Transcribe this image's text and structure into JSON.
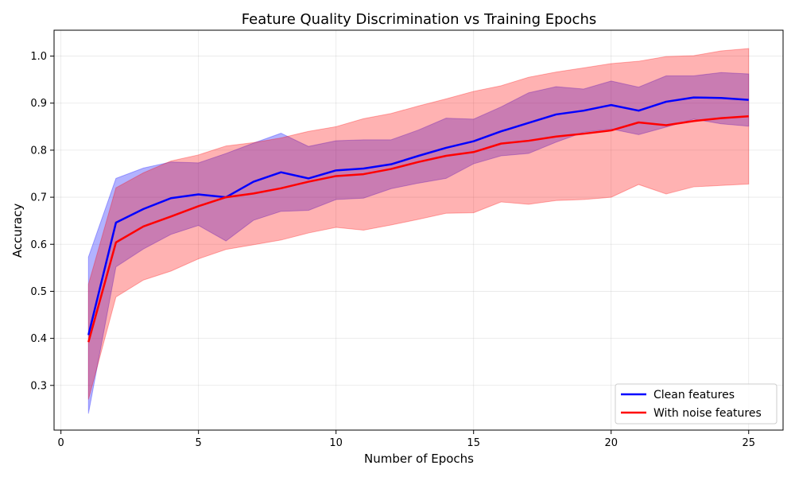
{
  "chart_data": {
    "type": "line",
    "title": "Feature Quality Discrimination vs Training Epochs",
    "xlabel": "Number of Epochs",
    "ylabel": "Accuracy",
    "xlim": [
      -0.25,
      26.25
    ],
    "ylim": [
      0.205,
      1.055
    ],
    "xticks": [
      0,
      5,
      10,
      15,
      20,
      25
    ],
    "yticks": [
      0.3,
      0.4,
      0.5,
      0.6,
      0.7,
      0.8,
      0.9,
      1.0
    ],
    "xtick_labels": [
      "0",
      "5",
      "10",
      "15",
      "20",
      "25"
    ],
    "ytick_labels": [
      "0.3",
      "0.4",
      "0.5",
      "0.6",
      "0.7",
      "0.8",
      "0.9",
      "1.0"
    ],
    "grid": true,
    "legend_position": "lower-right",
    "x": [
      1,
      2,
      3,
      4,
      5,
      6,
      7,
      8,
      9,
      10,
      11,
      12,
      13,
      14,
      15,
      16,
      17,
      18,
      19,
      20,
      21,
      22,
      23,
      24,
      25
    ],
    "series": [
      {
        "name": "Clean features",
        "color": "#0000ff",
        "band_color": "#0000ff",
        "values": [
          0.407,
          0.646,
          0.675,
          0.698,
          0.706,
          0.7,
          0.733,
          0.753,
          0.74,
          0.757,
          0.761,
          0.77,
          0.788,
          0.805,
          0.819,
          0.84,
          0.858,
          0.876,
          0.884,
          0.896,
          0.884,
          0.903,
          0.912,
          0.911,
          0.907
        ],
        "upper": [
          0.573,
          0.74,
          0.762,
          0.775,
          0.773,
          0.793,
          0.815,
          0.836,
          0.808,
          0.82,
          0.822,
          0.822,
          0.843,
          0.868,
          0.866,
          0.892,
          0.922,
          0.935,
          0.93,
          0.947,
          0.934,
          0.958,
          0.958,
          0.965,
          0.962
        ],
        "lower": [
          0.24,
          0.552,
          0.59,
          0.621,
          0.64,
          0.607,
          0.651,
          0.67,
          0.672,
          0.695,
          0.698,
          0.718,
          0.73,
          0.74,
          0.771,
          0.788,
          0.793,
          0.817,
          0.838,
          0.845,
          0.833,
          0.849,
          0.866,
          0.856,
          0.851
        ]
      },
      {
        "name": "With noise features",
        "color": "#ff0000",
        "band_color": "#ff0000",
        "values": [
          0.392,
          0.604,
          0.638,
          0.659,
          0.681,
          0.7,
          0.708,
          0.719,
          0.733,
          0.745,
          0.749,
          0.76,
          0.775,
          0.788,
          0.796,
          0.814,
          0.82,
          0.829,
          0.835,
          0.842,
          0.859,
          0.853,
          0.862,
          0.868,
          0.872
        ],
        "upper": [
          0.515,
          0.72,
          0.752,
          0.777,
          0.79,
          0.809,
          0.816,
          0.826,
          0.84,
          0.85,
          0.867,
          0.878,
          0.894,
          0.909,
          0.925,
          0.937,
          0.955,
          0.966,
          0.975,
          0.984,
          0.989,
          0.999,
          1.001,
          1.011,
          1.016
        ],
        "lower": [
          0.27,
          0.488,
          0.524,
          0.543,
          0.569,
          0.589,
          0.599,
          0.609,
          0.624,
          0.636,
          0.63,
          0.641,
          0.653,
          0.666,
          0.667,
          0.69,
          0.685,
          0.693,
          0.695,
          0.7,
          0.727,
          0.707,
          0.722,
          0.725,
          0.728
        ]
      }
    ]
  }
}
